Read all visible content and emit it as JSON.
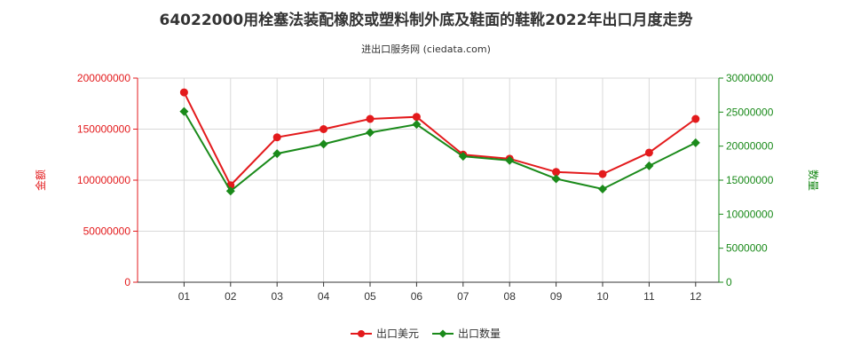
{
  "chart_data": {
    "type": "line",
    "title": "64022000用栓塞法装配橡胶或塑料制外底及鞋面的鞋靴2022年出口月度走势",
    "subtitle": "进出口服务网 (ciedata.com)",
    "categories": [
      "01",
      "02",
      "03",
      "04",
      "05",
      "06",
      "07",
      "08",
      "09",
      "10",
      "11",
      "12"
    ],
    "y_left": {
      "label": "金额",
      "ylim": [
        0,
        200000000
      ],
      "ticks": [
        0,
        50000000,
        100000000,
        150000000,
        200000000
      ],
      "color": "#e31a1c"
    },
    "y_right": {
      "label": "数量",
      "ylim": [
        0,
        30000000
      ],
      "ticks": [
        0,
        5000000,
        10000000,
        15000000,
        20000000,
        25000000,
        30000000
      ],
      "color": "#1a8a1a"
    },
    "series": [
      {
        "name": "出口美元",
        "axis": "left",
        "color": "#e31a1c",
        "values": [
          186000000,
          95000000,
          142000000,
          150000000,
          160000000,
          162000000,
          125000000,
          121000000,
          108000000,
          106000000,
          127000000,
          160000000
        ]
      },
      {
        "name": "出口数量",
        "axis": "right",
        "color": "#1a8a1a",
        "values": [
          25100000,
          13400000,
          18900000,
          20300000,
          22000000,
          23200000,
          18500000,
          17900000,
          15200000,
          13700000,
          17100000,
          20500000
        ]
      }
    ],
    "grid": true,
    "legend_position": "bottom-center"
  }
}
